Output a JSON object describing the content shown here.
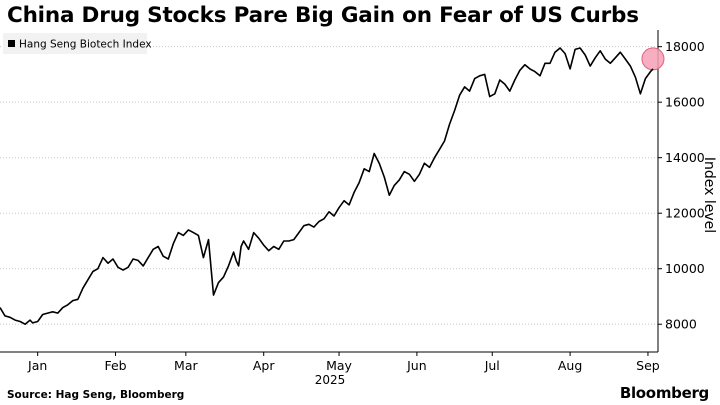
{
  "title": "China Drug Stocks Pare Big Gain on Fear of US Curbs",
  "source": "Source: Hag Seng, Bloomberg",
  "brand": "Bloomberg",
  "colors": {
    "line": "#000000",
    "highlight_fill": "#f5a0b5",
    "highlight_stroke": "#e0607e",
    "grid": "#c8c8c8"
  },
  "chart_data": {
    "type": "line",
    "title": "China Drug Stocks Pare Big Gain on Fear of US Curbs",
    "legend": [
      "Hang Seng Biotech Index"
    ],
    "legend_position": "top-left",
    "xlabel": "2025",
    "ylabel": "Index level",
    "ylim": [
      7000,
      18600
    ],
    "yticks": [
      8000,
      10000,
      12000,
      14000,
      16000,
      18000
    ],
    "ytick_labels": [
      "8000",
      "10000",
      "12000",
      "14000",
      "16000",
      "18000"
    ],
    "xticks": [
      "Jan",
      "Feb",
      "Mar",
      "Apr",
      "May",
      "Jun",
      "Jul",
      "Aug",
      "Sep"
    ],
    "xticks_day": [
      15,
      46,
      74,
      105,
      135,
      166,
      196,
      227,
      258
    ],
    "x_domain": [
      0,
      262
    ],
    "grid": "horizontal dotted",
    "highlight_point": {
      "day": 260,
      "value": 17200
    },
    "series": [
      {
        "name": "Hang Seng Biotech Index",
        "x": [
          0,
          2,
          4,
          6,
          8,
          10,
          12,
          13,
          15,
          17,
          19,
          21,
          23,
          25,
          27,
          29,
          31,
          33,
          35,
          37,
          39,
          41,
          43,
          45,
          47,
          49,
          51,
          53,
          55,
          57,
          59,
          61,
          63,
          65,
          67,
          69,
          71,
          73,
          75,
          77,
          79,
          81,
          83,
          85,
          87,
          89,
          91,
          93,
          94,
          95,
          96,
          97,
          99,
          101,
          103,
          105,
          107,
          109,
          111,
          113,
          115,
          117,
          119,
          121,
          123,
          125,
          127,
          129,
          131,
          133,
          135,
          137,
          139,
          141,
          143,
          145,
          147,
          149,
          151,
          153,
          155,
          157,
          159,
          161,
          163,
          165,
          167,
          169,
          171,
          173,
          175,
          177,
          179,
          181,
          183,
          185,
          187,
          189,
          191,
          193,
          195,
          197,
          199,
          201,
          203,
          205,
          207,
          209,
          211,
          213,
          215,
          217,
          219,
          221,
          223,
          225,
          227,
          229,
          231,
          233,
          235,
          237,
          239,
          241,
          243,
          245,
          247,
          249,
          251,
          253,
          255,
          257,
          259,
          260
        ],
        "values": [
          8600,
          8300,
          8250,
          8150,
          8100,
          8000,
          8150,
          8050,
          8100,
          8350,
          8400,
          8450,
          8400,
          8600,
          8700,
          8850,
          8900,
          9300,
          9600,
          9900,
          10000,
          10400,
          10200,
          10350,
          10050,
          9950,
          10050,
          10350,
          10300,
          10100,
          10400,
          10700,
          10800,
          10450,
          10350,
          10900,
          11300,
          11200,
          11400,
          11300,
          11200,
          10400,
          11050,
          9050,
          9500,
          9700,
          10100,
          10600,
          10300,
          10100,
          10800,
          11000,
          10700,
          11300,
          11100,
          10850,
          10650,
          10800,
          10700,
          11000,
          11000,
          11050,
          11300,
          11550,
          11600,
          11500,
          11700,
          11800,
          12050,
          11900,
          12200,
          12450,
          12300,
          12750,
          13100,
          13600,
          13500,
          14150,
          13800,
          13300,
          12650,
          13000,
          13200,
          13500,
          13400,
          13150,
          13400,
          13800,
          13650,
          14000,
          14300,
          14600,
          15200,
          15700,
          16250,
          16550,
          16400,
          16850,
          16950,
          17000,
          16200,
          16300,
          16800,
          16650,
          16400,
          16800,
          17150,
          17350,
          17200,
          17100,
          16950,
          17400,
          17400,
          17800,
          17950,
          17750,
          17200,
          17900,
          17950,
          17700,
          17300,
          17600,
          17850,
          17550,
          17400,
          17600,
          17800,
          17550,
          17300,
          16900,
          16300,
          16850,
          17100,
          17200
        ]
      }
    ]
  }
}
